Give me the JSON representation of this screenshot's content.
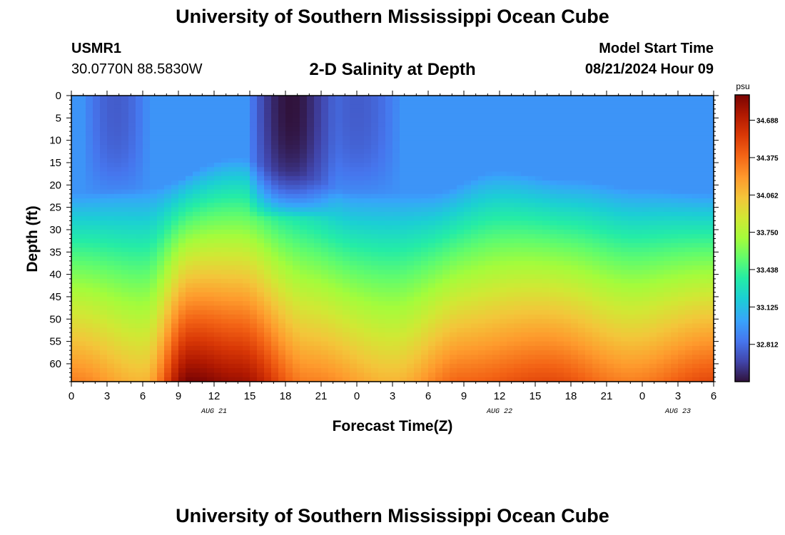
{
  "header": {
    "main_title": "University of Southern Mississippi Ocean Cube",
    "station_id": "USMR1",
    "station_coords": "30.0770N  88.5830W",
    "plot_title": "2-D Salinity at Depth",
    "model_start_label": "Model Start Time",
    "model_start_value": "08/21/2024 Hour 09"
  },
  "footer": {
    "title": "University of Southern Mississippi Ocean Cube"
  },
  "chart_data": {
    "type": "heatmap",
    "title": "2-D Salinity at Depth",
    "xlabel": "Forecast Time(Z)",
    "ylabel": "Depth (ft)",
    "x_range_hours": [
      0,
      54
    ],
    "x_tick_labels": [
      "0",
      "3",
      "6",
      "9",
      "12",
      "15",
      "18",
      "21",
      "0",
      "3",
      "6",
      "9",
      "12",
      "15",
      "18",
      "21",
      "0",
      "3",
      "6"
    ],
    "date_labels": [
      {
        "label": "AUG 21",
        "hour": 12
      },
      {
        "label": "AUG 22",
        "hour": 36
      },
      {
        "label": "AUG 23",
        "hour": 51
      }
    ],
    "ylim": [
      0,
      64
    ],
    "y_tick_labels": [
      "0",
      "5",
      "10",
      "15",
      "20",
      "25",
      "30",
      "35",
      "40",
      "45",
      "50",
      "55",
      "60"
    ],
    "colorbar": {
      "unit": "psu",
      "min": 32.5,
      "max": 34.9,
      "tick_values": [
        34.688,
        34.375,
        34.062,
        33.75,
        33.438,
        33.125,
        32.812
      ],
      "tick_labels": [
        "34.688",
        "34.375",
        "34.062",
        "33.750",
        "33.438",
        "33.125",
        "32.812"
      ]
    },
    "grid": false,
    "surface_salinity_psu": 32.95,
    "halocline_depth_ft_by_hour": [
      [
        0,
        38
      ],
      [
        6,
        37
      ],
      [
        14,
        30
      ],
      [
        18,
        33
      ],
      [
        24,
        38
      ],
      [
        30,
        38
      ],
      [
        36,
        33
      ],
      [
        42,
        35
      ],
      [
        48,
        37
      ],
      [
        54,
        38
      ]
    ],
    "bottom_salinity_psu_by_hour": [
      [
        0,
        34.3
      ],
      [
        6,
        34.1
      ],
      [
        10,
        34.9
      ],
      [
        14,
        34.8
      ],
      [
        20,
        34.3
      ],
      [
        27,
        34.1
      ],
      [
        33,
        34.4
      ],
      [
        40,
        34.5
      ],
      [
        47,
        34.3
      ],
      [
        54,
        34.5
      ]
    ],
    "low_salinity_patches": [
      {
        "hour_range": [
          1.5,
          6
        ],
        "depth_range_ft": [
          0,
          20
        ],
        "salinity_psu": 32.75
      },
      {
        "hour_range": [
          21,
          27
        ],
        "depth_range_ft": [
          0,
          20
        ],
        "salinity_psu": 32.75
      },
      {
        "hour_range": [
          15.5,
          21.5
        ],
        "depth_range_ft": [
          0,
          24
        ],
        "salinity_psu": 32.5
      }
    ]
  }
}
